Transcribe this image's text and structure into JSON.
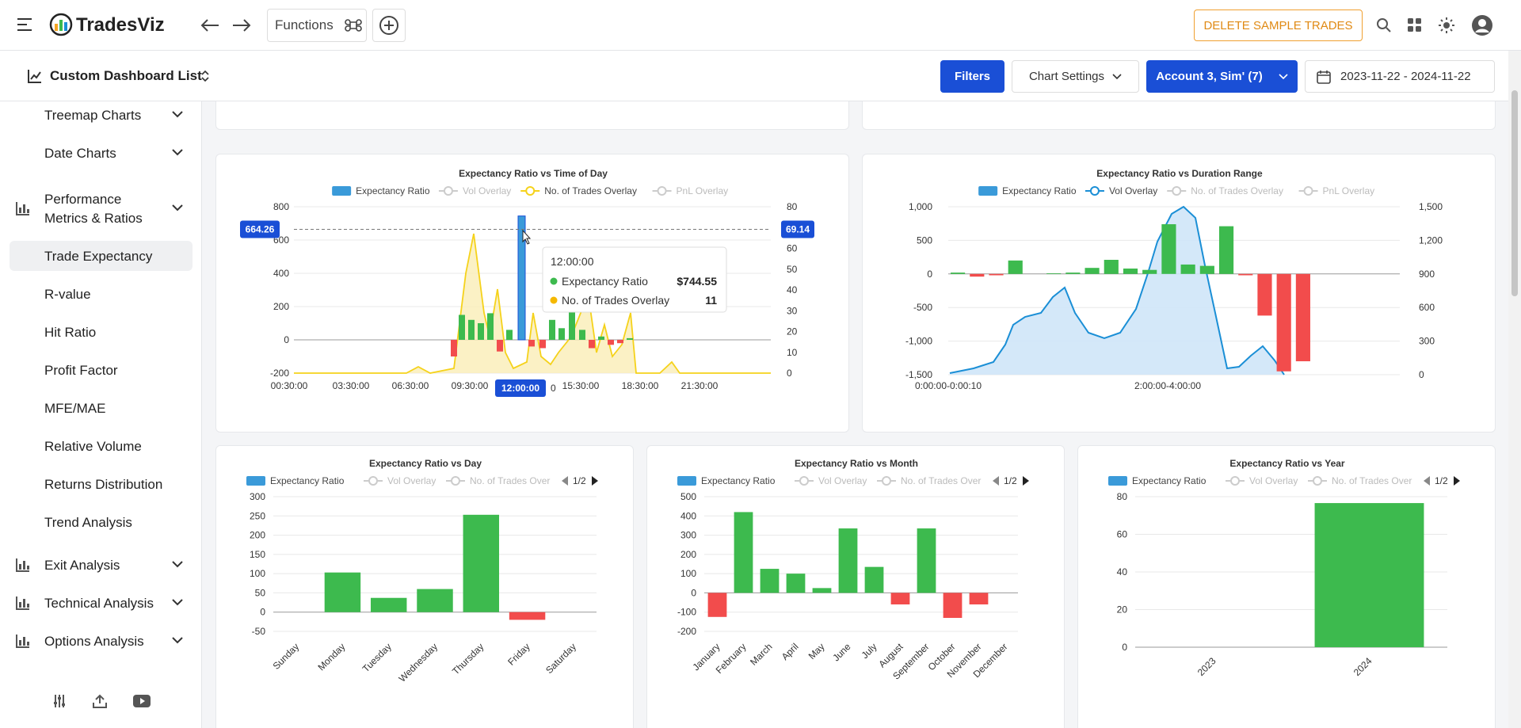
{
  "app": {
    "name": "TradesViz",
    "functions_label": "Functions",
    "delete_label": "DELETE SAMPLE TRADES"
  },
  "subheader": {
    "title": "Custom Dashboard List",
    "filters": "Filters",
    "chart_settings": "Chart Settings",
    "account": "Account 3, Sim' (7)",
    "date_range": "2023-11-22 - 2024-11-22"
  },
  "sidebar": {
    "items_top": [
      {
        "label": "Treemap Charts"
      },
      {
        "label": "Date Charts"
      }
    ],
    "perf_label_1": "Performance",
    "perf_label_2": "Metrics & Ratios",
    "perf_items": [
      {
        "label": "Trade Expectancy"
      },
      {
        "label": "R-value"
      },
      {
        "label": "Hit Ratio"
      },
      {
        "label": "Profit Factor"
      },
      {
        "label": "MFE/MAE"
      },
      {
        "label": "Relative Volume"
      },
      {
        "label": "Returns Distribution"
      },
      {
        "label": "Trend Analysis"
      }
    ],
    "sections": [
      {
        "label": "Exit Analysis"
      },
      {
        "label": "Technical Analysis"
      },
      {
        "label": "Options Analysis"
      }
    ]
  },
  "colors": {
    "green": "#3dba4e",
    "red": "#f24c4c",
    "blue": "#1a4fd6",
    "area": "#cfe6f8",
    "line": "#1b8fd6",
    "yellow": "#f5d21b"
  },
  "legend": {
    "expectancy": "Expectancy Ratio",
    "vol": "Vol Overlay",
    "trades": "No. of Trades Overlay",
    "trades_trunc": "No. of Trades Over",
    "pnl": "PnL Overlay",
    "page": "1/2"
  },
  "chart_data": [
    {
      "type": "bar",
      "title": "Expectancy Ratio  vs Time of Day",
      "x_ticks": [
        "00:30:00",
        "03:30:00",
        "06:30:00",
        "09:30:00",
        "12:00:00",
        "15:30:00",
        "18:30:00",
        "21:30:00"
      ],
      "y_ticks": [
        "800",
        "600",
        "400",
        "200",
        "0",
        "-200"
      ],
      "y2_ticks": [
        "80",
        "70",
        "60",
        "50",
        "40",
        "30",
        "20",
        "10",
        "0"
      ],
      "ylim": [
        -200,
        800
      ],
      "y2lim": [
        0,
        80
      ],
      "values": [
        -100,
        150,
        120,
        100,
        160,
        -70,
        60,
        744.55,
        -40,
        -50,
        120,
        70,
        200,
        60,
        -50,
        20,
        -30,
        -20,
        10
      ],
      "overlay": {
        "name": "No. of Trades Overlay",
        "note": "line"
      },
      "crosshair": {
        "y_label": "664.26",
        "y2_label": "69.14",
        "x_label": "12:00:00"
      },
      "tooltip": {
        "time": "12:00:00",
        "exp_label": "Expectancy Ratio",
        "exp_value": "$744.55",
        "trades_label": "No. of Trades Overlay",
        "trades_value": "11"
      }
    },
    {
      "type": "bar",
      "title": "Expectancy Ratio  vs Duration Range",
      "x_ticks": [
        "0:00:00-0:00:10",
        "2:00:00-4:00:00"
      ],
      "y_ticks": [
        "1,000",
        "500",
        "0",
        "-500",
        "-1,000",
        "-1,500"
      ],
      "y2_ticks": [
        "1,500",
        "1,200",
        "900",
        "600",
        "300",
        "0"
      ],
      "ylim": [
        -1500,
        1000
      ],
      "y2lim": [
        0,
        1500
      ],
      "values": [
        20,
        -40,
        -20,
        200,
        0,
        10,
        20,
        90,
        210,
        80,
        60,
        740,
        140,
        120,
        710,
        -20,
        -620,
        -1450,
        -1300
      ],
      "overlay": {
        "name": "Vol Overlay",
        "note": "area"
      }
    },
    {
      "type": "bar",
      "title": "Expectancy Ratio  vs Day",
      "categories": [
        "Sunday",
        "Monday",
        "Tuesday",
        "Wednesday",
        "Thursday",
        "Friday",
        "Saturday"
      ],
      "values": [
        0,
        103,
        37,
        60,
        253,
        -20,
        0
      ],
      "y_ticks": [
        "300",
        "250",
        "200",
        "150",
        "100",
        "50",
        "0",
        "-50"
      ],
      "ylim": [
        -50,
        300
      ]
    },
    {
      "type": "bar",
      "title": "Expectancy Ratio  vs Month",
      "categories": [
        "January",
        "February",
        "March",
        "April",
        "May",
        "June",
        "July",
        "August",
        "September",
        "October",
        "November",
        "December"
      ],
      "values": [
        -125,
        420,
        125,
        100,
        25,
        335,
        135,
        -60,
        335,
        -130,
        -60,
        0
      ],
      "y_ticks": [
        "500",
        "400",
        "300",
        "200",
        "100",
        "0",
        "-100",
        "-200"
      ],
      "ylim": [
        -200,
        500
      ]
    },
    {
      "type": "bar",
      "title": "Expectancy Ratio  vs Year",
      "categories": [
        "2023",
        "2024"
      ],
      "values": [
        0,
        76.6
      ],
      "y_ticks": [
        "80",
        "60",
        "40",
        "20",
        "0"
      ],
      "ylim": [
        0,
        80
      ]
    }
  ]
}
